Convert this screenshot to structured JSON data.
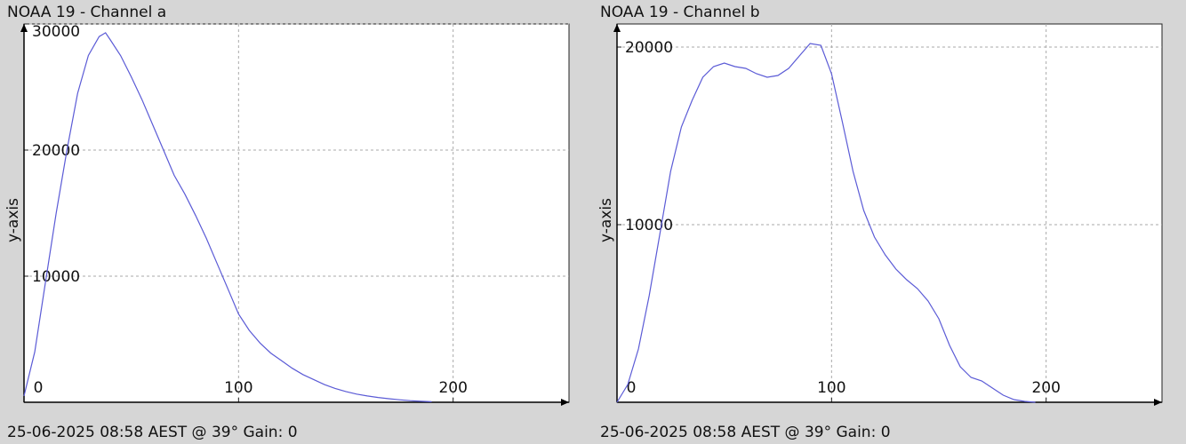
{
  "chart_data": [
    {
      "type": "line",
      "title": "NOAA 19 - Channel a",
      "ylabel": "y-axis",
      "footer": "25-06-2025 08:58 AEST @ 39° Gain: 0",
      "color": "#5b5bd6",
      "grid": true,
      "xlim": [
        0,
        254
      ],
      "ylim": [
        0,
        30000
      ],
      "xticks": [
        0,
        100,
        200
      ],
      "yticks": [
        10000,
        20000,
        30000
      ],
      "x": [
        0,
        5,
        10,
        15,
        20,
        25,
        30,
        35,
        38,
        40,
        45,
        50,
        55,
        60,
        65,
        70,
        75,
        80,
        85,
        90,
        95,
        100,
        105,
        110,
        115,
        120,
        125,
        130,
        135,
        140,
        145,
        150,
        155,
        160,
        165,
        170,
        175,
        180,
        185,
        190
      ],
      "values": [
        500,
        4000,
        9500,
        15000,
        20000,
        24500,
        27500,
        29000,
        29300,
        28800,
        27500,
        25800,
        24000,
        22000,
        20000,
        18000,
        16500,
        14800,
        13000,
        11000,
        9000,
        7000,
        5700,
        4700,
        3900,
        3300,
        2700,
        2200,
        1800,
        1400,
        1100,
        850,
        650,
        500,
        380,
        280,
        200,
        130,
        80,
        40
      ]
    },
    {
      "type": "line",
      "title": "NOAA 19 - Channel b",
      "ylabel": "y-axis",
      "footer": "25-06-2025 08:58 AEST @ 39° Gain: 0",
      "color": "#5b5bd6",
      "grid": true,
      "xlim": [
        0,
        254
      ],
      "ylim": [
        0,
        21300
      ],
      "xticks": [
        0,
        100,
        200
      ],
      "yticks": [
        10000,
        20000
      ],
      "x": [
        0,
        5,
        10,
        15,
        20,
        25,
        30,
        35,
        40,
        45,
        50,
        55,
        60,
        65,
        70,
        75,
        80,
        85,
        90,
        95,
        100,
        105,
        110,
        115,
        120,
        125,
        130,
        135,
        140,
        145,
        150,
        155,
        160,
        165,
        170,
        175,
        180,
        185,
        190,
        195
      ],
      "values": [
        0,
        1000,
        3000,
        6000,
        9500,
        13000,
        15500,
        17000,
        18300,
        18900,
        19100,
        18900,
        18800,
        18500,
        18300,
        18400,
        18800,
        19500,
        20200,
        20100,
        18500,
        15800,
        13000,
        10800,
        9300,
        8300,
        7500,
        6900,
        6400,
        5700,
        4700,
        3200,
        2000,
        1400,
        1200,
        800,
        400,
        150,
        50,
        0
      ]
    }
  ]
}
